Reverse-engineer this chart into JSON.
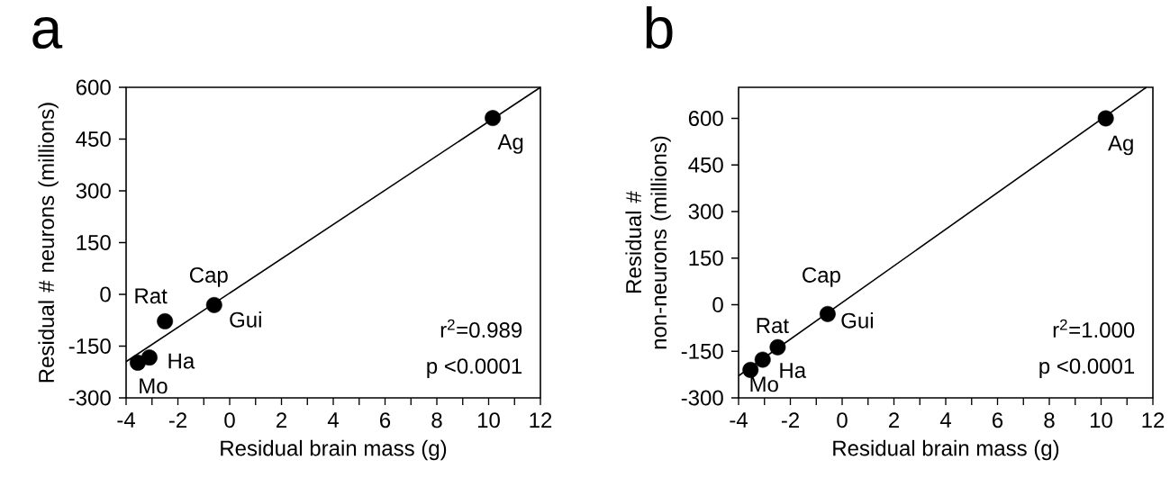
{
  "chart_data": [
    {
      "type": "scatter",
      "title": "a",
      "xlabel": "Residual brain mass (g)",
      "ylabel": "Residual # neurons (millions)",
      "xlim": [
        -4,
        12
      ],
      "ylim": [
        -300,
        600
      ],
      "xticks": [
        -4,
        -2,
        0,
        2,
        4,
        6,
        8,
        10,
        12
      ],
      "yticks": [
        -300,
        -150,
        0,
        150,
        300,
        450,
        600
      ],
      "series": [
        {
          "marker": "circle",
          "color": "#000000",
          "x": [
            10.16,
            -0.6,
            -2.5,
            -3.1,
            -3.55
          ],
          "values": [
            511,
            -31,
            -78,
            -183,
            -198
          ]
        },
        {
          "type": "line",
          "marker": "none",
          "color": "#000000",
          "x": [
            -4,
            12
          ],
          "values": [
            -195,
            600
          ]
        }
      ],
      "annotations": [
        {
          "text": "Ag",
          "x": 10.16,
          "y": 511
        },
        {
          "text": "Cap",
          "x": -0.6,
          "y": -31
        },
        {
          "text": "Gui",
          "x": -0.6,
          "y": -31
        },
        {
          "text": "Rat",
          "x": -2.5,
          "y": -78
        },
        {
          "text": "Ha",
          "x": -3.1,
          "y": -183
        },
        {
          "text": "Mo",
          "x": -3.55,
          "y": -198
        },
        "r$^{2}$=0.989",
        "p <0.0001"
      ]
    },
    {
      "type": "scatter",
      "title": "b",
      "xlabel": "Residual brain mass (g)",
      "ylabel": "Residual # non-neurons (millions)",
      "xlim": [
        -4,
        12
      ],
      "ylim": [
        -300,
        700
      ],
      "xticks": [
        -4,
        -2,
        0,
        2,
        4,
        6,
        8,
        10,
        12
      ],
      "yticks": [
        -300,
        -150,
        0,
        150,
        300,
        450,
        600
      ],
      "series": [
        {
          "marker": "circle",
          "color": "#000000",
          "x": [
            10.18,
            -0.56,
            -2.49,
            -3.07,
            -3.54
          ],
          "values": [
            600,
            -30,
            -137,
            -177,
            -210
          ]
        },
        {
          "type": "line",
          "marker": "none",
          "color": "#000000",
          "x": [
            -4,
            11.75
          ],
          "values": [
            -229,
            700
          ]
        }
      ],
      "annotations": [
        {
          "text": "Ag",
          "x": 10.18,
          "y": 600
        },
        {
          "text": "Cap",
          "x": -0.56,
          "y": -30
        },
        {
          "text": "Gui",
          "x": -0.56,
          "y": -30
        },
        {
          "text": "Rat",
          "x": -2.49,
          "y": -137
        },
        {
          "text": "Ha",
          "x": -3.07,
          "y": -177
        },
        {
          "text": "Mo",
          "x": -3.54,
          "y": -210
        },
        "r$^{2}$=1.000",
        "p <0.0001"
      ]
    }
  ]
}
